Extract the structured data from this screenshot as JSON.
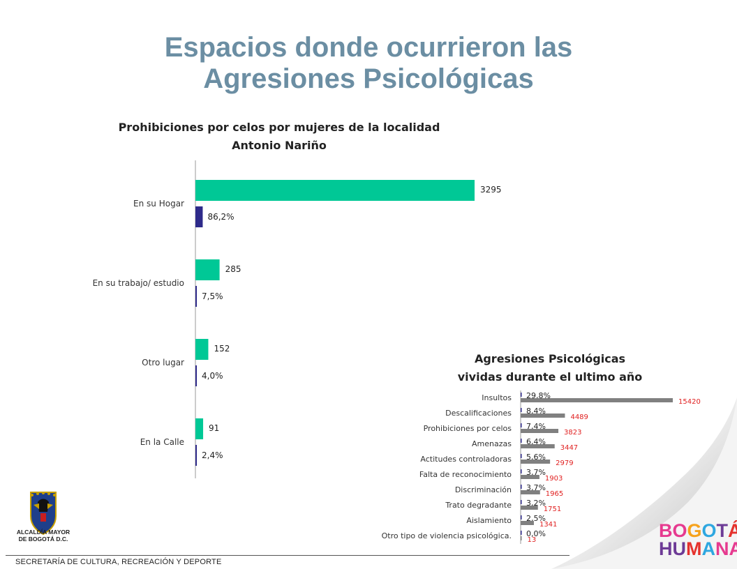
{
  "title": {
    "line1": "Espacios donde ocurrieron las",
    "line2": "Agresiones Psicológicas"
  },
  "chart_data": [
    {
      "type": "bar",
      "orientation": "horizontal",
      "title_line1": "Prohibiciones por celos por mujeres de la localidad",
      "title_line2": "Antonio Nariño",
      "categories": [
        "En su Hogar",
        "En su trabajo/ estudio",
        "Otro lugar",
        "En la Calle"
      ],
      "series": [
        {
          "values": [
            3295,
            285,
            152,
            91
          ],
          "labels": [
            "3295",
            "285",
            "152",
            "91"
          ],
          "color": "#00c896"
        },
        {
          "values": [
            86.2,
            7.5,
            4.0,
            2.4
          ],
          "labels": [
            "86,2%",
            "7,5%",
            "4,0%",
            "2,4%"
          ],
          "color": "#2e2a8a"
        }
      ],
      "grid": false,
      "legend": "none"
    },
    {
      "type": "bar",
      "orientation": "horizontal",
      "title_line1": "Agresiones Psicológicas",
      "title_line2": "vividas durante el ultimo año",
      "categories": [
        "Insultos",
        "Descalificaciones",
        "Prohibiciones por celos",
        "Amenazas",
        "Actitudes controladoras",
        "Falta de reconocimiento",
        "Discriminación",
        "Trato degradante",
        "Aislamiento",
        "Otro tipo de violencia psicológica."
      ],
      "series": [
        {
          "values": [
            29.8,
            8.4,
            7.4,
            6.4,
            5.6,
            3.7,
            3.7,
            3.2,
            2.5,
            0.0
          ],
          "labels": [
            "29,8%",
            "8,4%",
            "7,4%",
            "6,4%",
            "5,6%",
            "3,7%",
            "3,7%",
            "3,2%",
            "2,5%",
            "0,0%"
          ],
          "color": "#2e2a8a"
        },
        {
          "values": [
            15420,
            4489,
            3823,
            3447,
            2979,
            1903,
            1965,
            1751,
            1341,
            13
          ],
          "labels": [
            "15420",
            "4489",
            "3823",
            "3447",
            "2979",
            "1903",
            "1965",
            "1751",
            "1341",
            "13"
          ],
          "color": "#808080",
          "label_color": "#e02020"
        }
      ],
      "grid": false,
      "legend": "none"
    }
  ],
  "logos": {
    "crest_line1": "ALCALDÍA MAYOR",
    "crest_line2": "DE BOGOTÁ D.C.",
    "brand_line1": "BOGOTÁ",
    "brand_line2": "HUMANA"
  },
  "footer": "SECRETARÍA DE CULTURA, RECREACIÓN Y DEPORTE",
  "colors": {
    "title": "#6b8ea3",
    "teal": "#00c896",
    "navy": "#2e2a8a",
    "gray": "#808080",
    "red": "#e02020"
  }
}
